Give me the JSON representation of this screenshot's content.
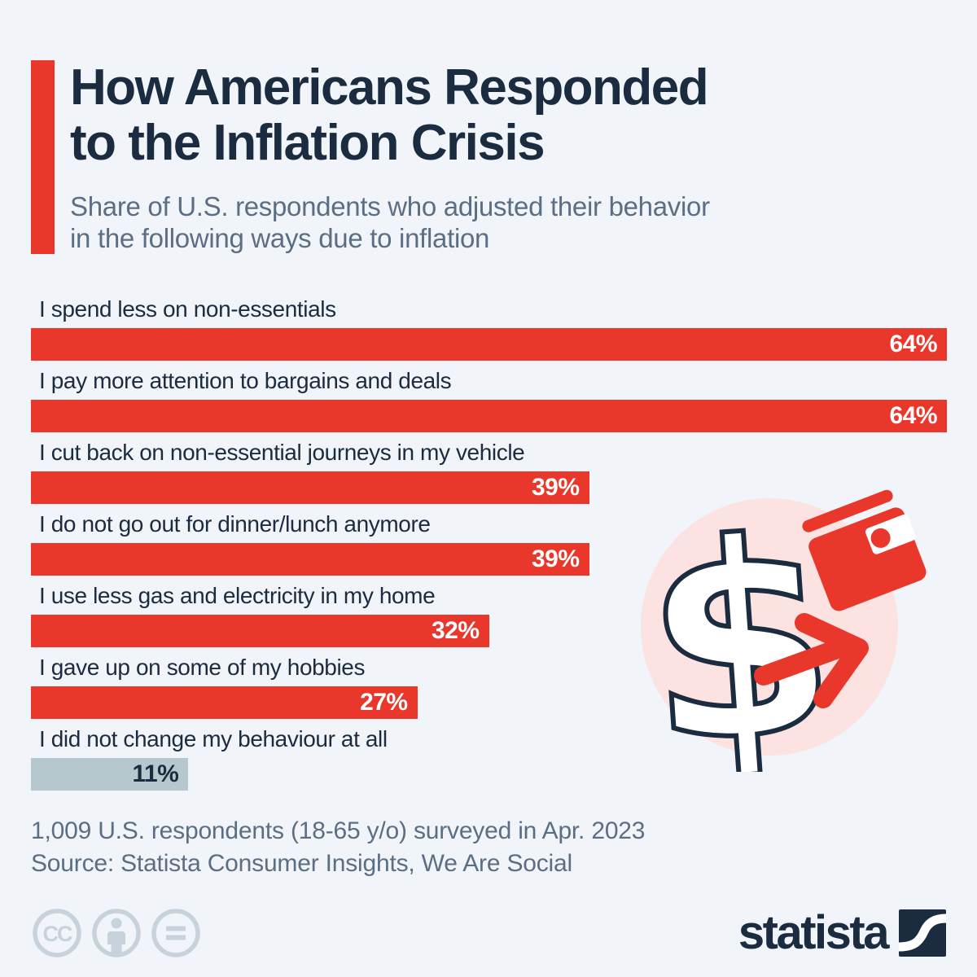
{
  "colors": {
    "background": "#f1f4f8",
    "navy": "#1b2b40",
    "red": "#e9382b",
    "muted": "#5b6e83",
    "gray_bar": "#b6c7ce",
    "pink": "#fce3e1",
    "license": "#c8d2db",
    "white": "#ffffff"
  },
  "header": {
    "title_lines": [
      "How Americans Responded",
      "to the Inflation Crisis"
    ],
    "subtitle_lines": [
      "Share of U.S. respondents who adjusted their behavior",
      "in the following ways due to inflation"
    ]
  },
  "chart_data": {
    "type": "bar",
    "orientation": "horizontal",
    "unit": "%",
    "categories": [
      "I spend less on non-essentials",
      "I pay more attention to bargains and deals",
      "I cut back on non-essential journeys in my vehicle",
      "I do not go out for dinner/lunch anymore",
      "I use less gas and electricity in my home",
      "I gave up on some of my hobbies",
      "I did not change my behaviour at all"
    ],
    "values": [
      64,
      64,
      39,
      39,
      32,
      27,
      11
    ],
    "value_labels": [
      "64%",
      "64%",
      "39%",
      "39%",
      "32%",
      "27%",
      "11%"
    ],
    "bar_colors": [
      "#e9382b",
      "#e9382b",
      "#e9382b",
      "#e9382b",
      "#e9382b",
      "#e9382b",
      "#b6c7ce"
    ],
    "value_label_colors": [
      "#ffffff",
      "#ffffff",
      "#ffffff",
      "#ffffff",
      "#ffffff",
      "#ffffff",
      "#1b2b40"
    ],
    "scale": {
      "min": 0,
      "max": 64
    },
    "grid": false,
    "legend": false
  },
  "footer": {
    "note": "1,009 U.S. respondents (18-65 y/o) surveyed in Apr. 2023",
    "source": "Source: Statista Consumer Insights, We Are Social"
  },
  "branding": {
    "logo_text": "statista",
    "license_icons": [
      "creative-commons",
      "attribution",
      "no-derivatives"
    ],
    "license_cc_label": "CC"
  },
  "illustration": {
    "elements": [
      "pink-circle",
      "dollar-sign",
      "wallet",
      "arrow-right"
    ]
  }
}
